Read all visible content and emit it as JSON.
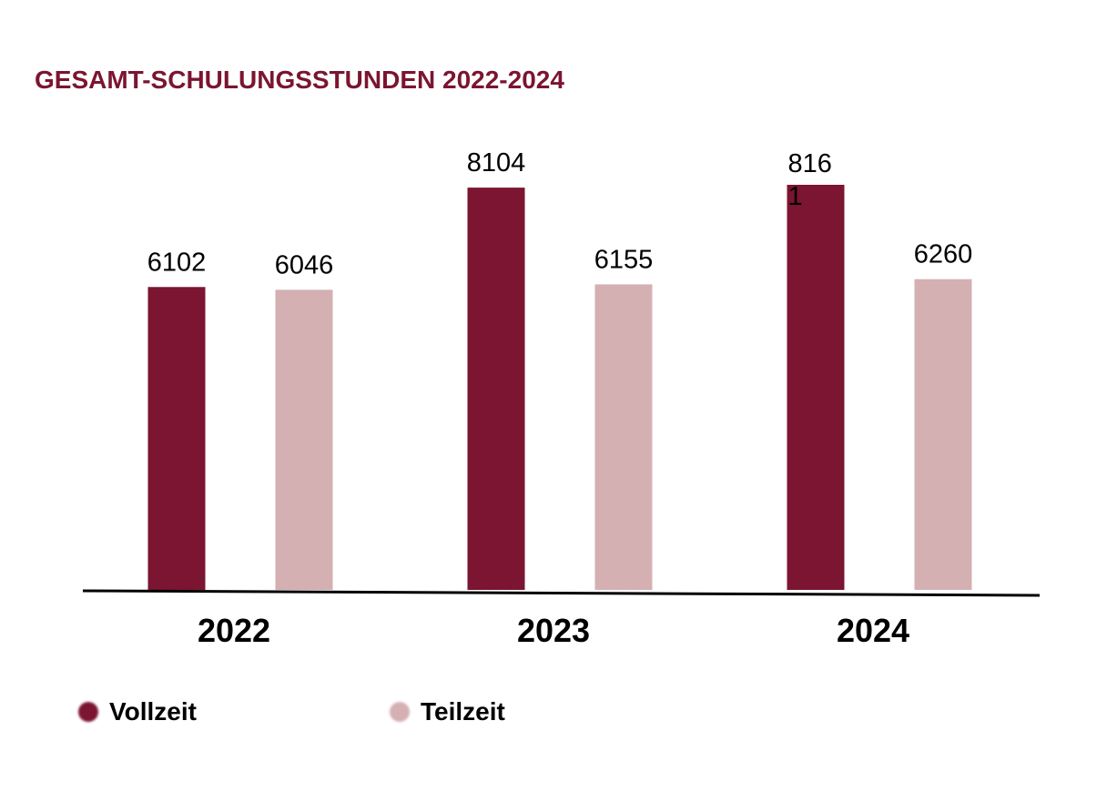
{
  "colors": {
    "title": "#7b1531",
    "vollzeit": "#7b1531",
    "teilzeit": "#d4b0b3",
    "axis": "#000000",
    "text": "#000000"
  },
  "chart_data": {
    "type": "bar",
    "title": "GESAMT-SCHULUNGSSTUNDEN 2022-2024",
    "xlabel": "",
    "ylabel": "",
    "categories": [
      "2022",
      "2023",
      "2024"
    ],
    "series": [
      {
        "name": "Vollzeit",
        "values": [
          6102,
          8104,
          8161
        ],
        "labels": [
          "6102",
          "8104",
          "816\n1"
        ]
      },
      {
        "name": "Teilzeit",
        "values": [
          6046,
          6155,
          6260
        ],
        "labels": [
          "6046",
          "6155",
          "6260"
        ]
      }
    ],
    "ylim": [
      0,
      8161
    ],
    "grid": false,
    "legend_position": "bottom-left"
  },
  "legend": {
    "items": [
      {
        "label": "Vollzeit",
        "color": "#7b1531"
      },
      {
        "label": "Teilzeit",
        "color": "#d4b0b3"
      }
    ]
  }
}
